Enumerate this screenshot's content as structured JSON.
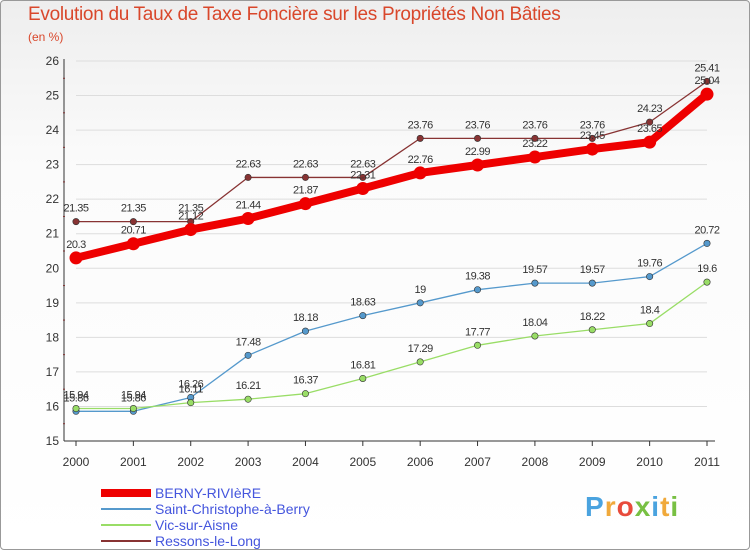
{
  "title": "Evolution du Taux de Taxe Foncière sur les Propriétés Non Bâties",
  "subtitle": "(en %)",
  "logo": {
    "text": "Proxiti",
    "colors": [
      "#4aa3df",
      "#f0a93b",
      "#e84b3c",
      "#78c043",
      "#4aa3df",
      "#f0a93b",
      "#78c043"
    ]
  },
  "chart_data": {
    "type": "line",
    "x": [
      "2000",
      "2001",
      "2002",
      "2003",
      "2004",
      "2005",
      "2006",
      "2007",
      "2008",
      "2009",
      "2010",
      "2011"
    ],
    "ylim": [
      15,
      26
    ],
    "yticks": [
      15,
      16,
      17,
      18,
      19,
      20,
      21,
      22,
      23,
      24,
      25,
      26
    ],
    "grid": true,
    "legend": "bottom",
    "series": [
      {
        "name": "BERNY-RIVIèRE",
        "color": "#ee0000",
        "values": [
          20.3,
          20.71,
          21.12,
          21.44,
          21.87,
          22.31,
          22.76,
          22.99,
          23.22,
          23.45,
          23.65,
          25.04
        ],
        "labels": [
          "20.3",
          "20.71",
          "21.12",
          "21.44",
          "21.87",
          "22.31",
          "22.76",
          "22.99",
          "23.22",
          "23.45",
          "23.65",
          "25.04"
        ]
      },
      {
        "name": "Saint-Christophe-à-Berry",
        "color": "#5599cc",
        "values": [
          15.86,
          15.86,
          16.26,
          17.48,
          18.18,
          18.63,
          19,
          19.38,
          19.57,
          19.57,
          19.76,
          20.72
        ],
        "labels": [
          "15.86",
          "15.86",
          "16.26",
          "17.48",
          "18.18",
          "18.63",
          "19",
          "19.38",
          "19.57",
          "19.57",
          "19.76",
          "20.72"
        ]
      },
      {
        "name": "Vic-sur-Aisne",
        "color": "#99dd66",
        "values": [
          15.94,
          15.94,
          16.11,
          16.21,
          16.37,
          16.81,
          17.29,
          17.77,
          18.04,
          18.22,
          18.4,
          19.6
        ],
        "labels": [
          "15.94",
          "15.94",
          "16.11",
          "16.21",
          "16.37",
          "16.81",
          "17.29",
          "17.77",
          "18.04",
          "18.22",
          "18.4",
          "19.6"
        ]
      },
      {
        "name": "Ressons-le-Long",
        "color": "#883333",
        "values": [
          21.35,
          21.35,
          21.35,
          22.63,
          22.63,
          22.63,
          23.76,
          23.76,
          23.76,
          23.76,
          24.23,
          25.41
        ],
        "labels": [
          "21.35",
          "21.35",
          "21.35",
          "22.63",
          "22.63",
          "22.63",
          "23.76",
          "23.76",
          "23.76",
          "23.76",
          "24.23",
          "25.41"
        ]
      }
    ]
  }
}
